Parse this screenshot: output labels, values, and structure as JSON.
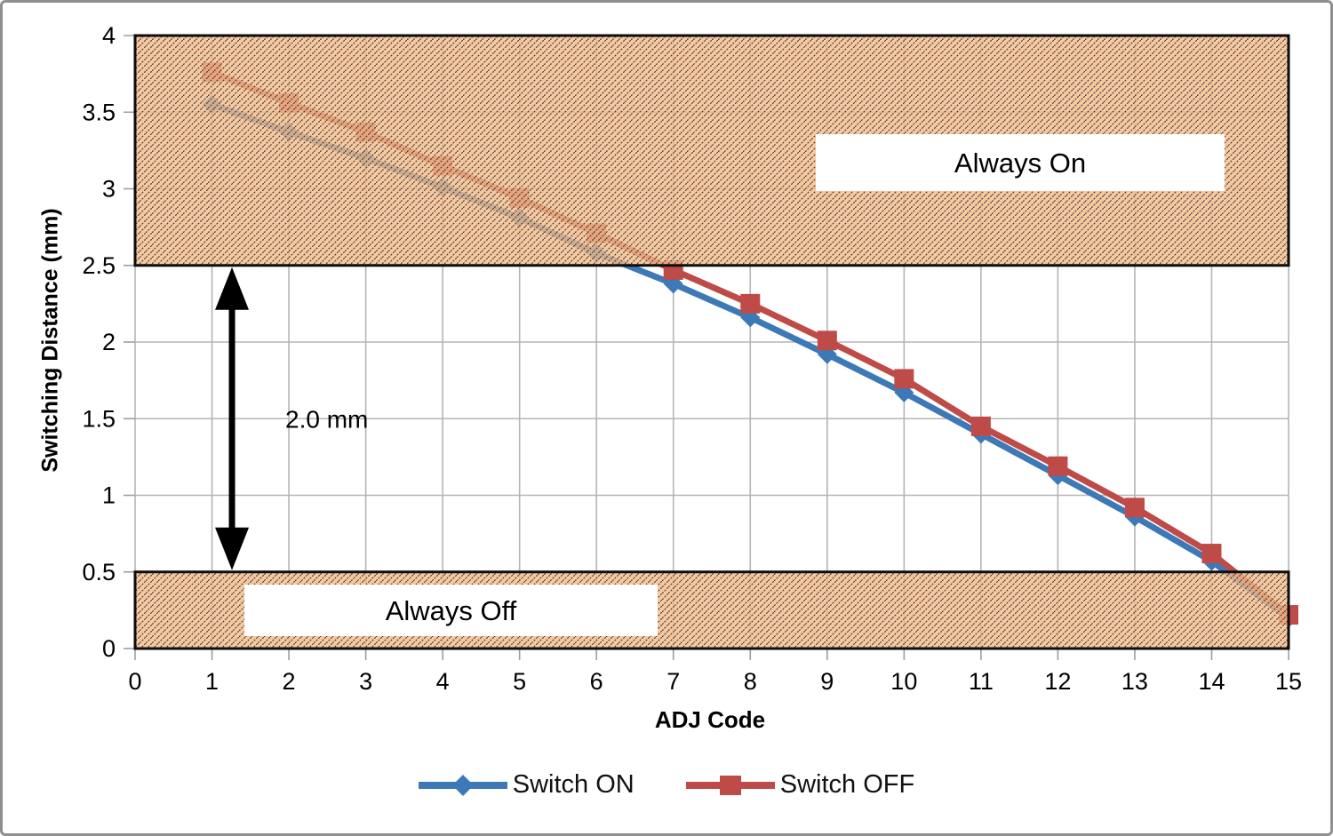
{
  "chart_data": {
    "type": "line",
    "title": "",
    "xlabel": "ADJ Code",
    "ylabel": "Switching Distance (mm)",
    "xlim": [
      0,
      15
    ],
    "ylim": [
      0,
      4
    ],
    "xticks": [
      0,
      1,
      2,
      3,
      4,
      5,
      6,
      7,
      8,
      9,
      10,
      11,
      12,
      13,
      14,
      15
    ],
    "yticks": [
      0,
      0.5,
      1,
      1.5,
      2,
      2.5,
      3,
      3.5,
      4
    ],
    "grid": true,
    "legend_position": "bottom",
    "x": [
      1,
      2,
      3,
      4,
      5,
      6,
      7,
      8,
      9,
      10,
      11,
      12,
      13,
      14,
      15
    ],
    "series": [
      {
        "name": "Switch ON",
        "marker": "diamond",
        "color": "#3E79B7",
        "values": [
          3.55,
          3.37,
          3.2,
          3.01,
          2.81,
          2.58,
          2.38,
          2.16,
          1.92,
          1.67,
          1.4,
          1.13,
          0.86,
          0.57,
          0.2
        ]
      },
      {
        "name": "Switch OFF",
        "marker": "square",
        "color": "#BE4B48",
        "values": [
          3.76,
          3.56,
          3.37,
          3.15,
          2.94,
          2.71,
          2.47,
          2.25,
          2.01,
          1.76,
          1.45,
          1.19,
          0.92,
          0.62,
          0.22
        ]
      }
    ],
    "regions": [
      {
        "label": "Always On",
        "y_from": 2.5,
        "y_to": 4.0,
        "fill": "rgba(246,187,133,0.8)",
        "hatch": true,
        "border": "#0d0d0d"
      },
      {
        "label": "Always Off",
        "y_from": 0.0,
        "y_to": 0.5,
        "fill": "rgba(246,187,133,0.8)",
        "hatch": true,
        "border": "#0d0d0d"
      }
    ],
    "annotation": {
      "text": "2.0 mm",
      "x": 1.26,
      "y_from": 0.5,
      "y_to": 2.5
    },
    "colors": {
      "gridline": "#B5B5B5",
      "tick": "#9e9e9e",
      "hatch_line": "#3d3d4d",
      "text": "#000000"
    }
  }
}
